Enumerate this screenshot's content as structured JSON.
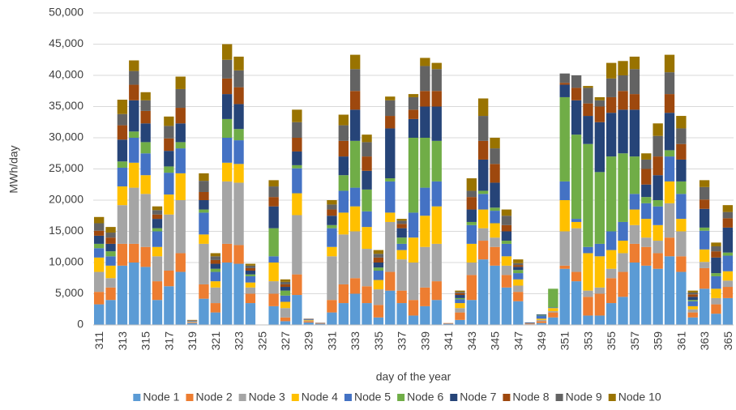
{
  "chart_data": {
    "type": "stacked-bar",
    "y_label": "MWh/day",
    "x_label": "day of the year",
    "categories": [
      "311",
      null,
      "313",
      null,
      "315",
      null,
      "317",
      null,
      "319",
      null,
      "321",
      null,
      "323",
      null,
      "325",
      null,
      "327",
      null,
      "329",
      null,
      "331",
      null,
      "333",
      null,
      "335",
      null,
      "337",
      null,
      "339",
      null,
      "341",
      null,
      "343",
      null,
      "345",
      null,
      "347",
      null,
      "349",
      null,
      "351",
      null,
      "353",
      null,
      "355",
      null,
      "357",
      null,
      "359",
      null,
      "361",
      null,
      "363",
      null,
      "365"
    ],
    "ylim": [
      0,
      50000
    ],
    "yticks": [
      0,
      {
        "value": 5000,
        "label": "5,000"
      },
      {
        "value": 10000,
        "label": "10,000"
      },
      {
        "value": 15000,
        "label": "15,000"
      },
      {
        "value": 20000,
        "label": "20,000"
      },
      {
        "value": 25000,
        "label": "25,000"
      },
      {
        "value": 30000,
        "label": "30,000"
      },
      {
        "value": 35000,
        "label": "35,000"
      },
      {
        "value": 40000,
        "label": "40,000"
      },
      {
        "value": 45000,
        "label": "45,000"
      },
      {
        "value": 50000,
        "label": "50,000"
      }
    ],
    "grid": true,
    "legend": "bottom",
    "series": [
      {
        "name": "Node 1",
        "color": "#5b9bd5",
        "values": [
          3300,
          4000,
          9500,
          10000,
          9300,
          4000,
          6200,
          8500,
          300,
          4200,
          2000,
          10000,
          9800,
          3500,
          0,
          3000,
          600,
          4800,
          400,
          200,
          2000,
          3500,
          5000,
          3500,
          1200,
          5500,
          3500,
          1500,
          3000,
          4000,
          200,
          800,
          4000,
          10500,
          9500,
          6000,
          3800,
          100,
          300,
          1200,
          9000,
          7000,
          1500,
          1500,
          3500,
          4500,
          10000,
          9500,
          9000,
          11000,
          8500,
          1200,
          5800,
          1800,
          4300
        ]
      },
      {
        "name": "Node 2",
        "color": "#ed7d31",
        "values": [
          2000,
          2000,
          3500,
          3000,
          3200,
          3000,
          2500,
          3000,
          100,
          2300,
          1500,
          3000,
          3000,
          1500,
          0,
          2000,
          600,
          3300,
          200,
          100,
          2000,
          3000,
          2500,
          2700,
          2000,
          3000,
          2000,
          2500,
          3000,
          3000,
          100,
          1200,
          4000,
          3000,
          3000,
          2000,
          1500,
          100,
          300,
          800,
          500,
          1500,
          3000,
          3500,
          4000,
          4000,
          3000,
          3000,
          2500,
          3000,
          2500,
          800,
          3300,
          1500,
          1800
        ]
      },
      {
        "name": "Node 3",
        "color": "#a5a5a5",
        "values": [
          3200,
          1500,
          6200,
          9000,
          8500,
          4000,
          9000,
          8500,
          100,
          6500,
          2500,
          10000,
          10000,
          1000,
          0,
          2000,
          1500,
          9500,
          100,
          100,
          7000,
          8000,
          7500,
          6000,
          2500,
          8000,
          5000,
          6000,
          6500,
          6000,
          0,
          700,
          2000,
          2000,
          1500,
          1500,
          1000,
          100,
          200,
          200,
          5500,
          7000,
          1000,
          1000,
          1500,
          3000,
          3000,
          1500,
          2000,
          5500,
          4000,
          500,
          1000,
          1000,
          1000
        ]
      },
      {
        "name": "Node 4",
        "color": "#ffc000",
        "values": [
          2300,
          2000,
          3000,
          4000,
          3000,
          1500,
          3200,
          4300,
          50,
          1500,
          1000,
          3000,
          3000,
          800,
          0,
          3000,
          1000,
          3500,
          100,
          0,
          1500,
          3500,
          4000,
          3500,
          1500,
          1500,
          1500,
          4000,
          5000,
          6000,
          0,
          800,
          3000,
          3000,
          2300,
          1500,
          1000,
          0,
          200,
          500,
          5000,
          1000,
          6000,
          5000,
          3000,
          2000,
          2500,
          3000,
          2500,
          3500,
          2000,
          500,
          2000,
          1500,
          1500
        ]
      },
      {
        "name": "Node 5",
        "color": "#4472c4",
        "values": [
          1500,
          1500,
          3000,
          4000,
          3500,
          2500,
          3500,
          4000,
          50,
          3500,
          1500,
          4000,
          3800,
          1000,
          0,
          1000,
          1000,
          4000,
          50,
          0,
          3000,
          3500,
          3000,
          2500,
          1500,
          5000,
          1000,
          4000,
          4500,
          4000,
          0,
          600,
          3000,
          2500,
          2000,
          2000,
          1000,
          0,
          500,
          100,
          3000,
          500,
          1000,
          2000,
          3000,
          3000,
          2500,
          2500,
          3000,
          4000,
          4000,
          800,
          3000,
          2000,
          2500
        ]
      },
      {
        "name": "Node 6",
        "color": "#70ad47",
        "values": [
          700,
          800,
          1000,
          1000,
          1800,
          500,
          1000,
          1000,
          0,
          500,
          500,
          3000,
          1800,
          300,
          0,
          4500,
          800,
          500,
          0,
          0,
          500,
          2500,
          7500,
          3500,
          500,
          500,
          1000,
          12000,
          8000,
          6500,
          0,
          200,
          500,
          500,
          500,
          500,
          500,
          0,
          100,
          3000,
          13500,
          13500,
          16500,
          11500,
          12000,
          11000,
          6000,
          1000,
          1000,
          1000,
          2000,
          200,
          500,
          500,
          500
        ]
      },
      {
        "name": "Node 7",
        "color": "#264478",
        "values": [
          1300,
          1200,
          3500,
          5000,
          3000,
          1500,
          2500,
          3000,
          50,
          1500,
          800,
          4000,
          4000,
          600,
          0,
          3500,
          600,
          2200,
          50,
          0,
          1500,
          3000,
          5000,
          3000,
          800,
          8000,
          1500,
          3000,
          5000,
          5500,
          0,
          500,
          2000,
          5000,
          4000,
          1500,
          500,
          100,
          100,
          0,
          2000,
          5500,
          4500,
          8000,
          7000,
          7000,
          7500,
          2000,
          4000,
          6000,
          3500,
          500,
          3000,
          2500,
          4000
        ]
      },
      {
        "name": "Node 8",
        "color": "#9e480e",
        "values": [
          800,
          1000,
          2300,
          2500,
          2000,
          700,
          2000,
          2500,
          50,
          1300,
          600,
          2500,
          2700,
          400,
          0,
          1500,
          400,
          2200,
          50,
          0,
          1000,
          2500,
          3000,
          2300,
          800,
          2000,
          700,
          1500,
          2500,
          2500,
          0,
          300,
          2000,
          3000,
          3000,
          1000,
          300,
          0,
          0,
          0,
          300,
          2000,
          2000,
          2500,
          2500,
          3000,
          2500,
          2500,
          3000,
          3000,
          2500,
          400,
          1500,
          1000,
          1500
        ]
      },
      {
        "name": "Node 9",
        "color": "#636363",
        "values": [
          1200,
          800,
          1800,
          2200,
          1700,
          700,
          2000,
          3000,
          50,
          1800,
          600,
          3000,
          2700,
          400,
          0,
          1700,
          400,
          2500,
          50,
          0,
          800,
          2500,
          3500,
          2300,
          600,
          2500,
          500,
          2000,
          4000,
          3500,
          0,
          200,
          1000,
          4000,
          2500,
          1500,
          300,
          0,
          0,
          0,
          1500,
          2000,
          2500,
          1000,
          3000,
          2500,
          4000,
          1500,
          3300,
          3500,
          2500,
          300,
          2000,
          800,
          1000
        ]
      },
      {
        "name": "Node 10",
        "color": "#997300",
        "values": [
          1000,
          900,
          2300,
          1700,
          1300,
          600,
          1500,
          2000,
          50,
          1200,
          500,
          2500,
          2200,
          300,
          0,
          1000,
          400,
          2000,
          0,
          0,
          700,
          1700,
          2300,
          1200,
          600,
          600,
          300,
          500,
          1300,
          1000,
          0,
          200,
          2000,
          2800,
          1700,
          1000,
          600,
          0,
          0,
          0,
          0,
          0,
          300,
          500,
          2500,
          2300,
          2000,
          1000,
          2000,
          2800,
          2000,
          300,
          1100,
          600,
          1100
        ]
      }
    ]
  }
}
